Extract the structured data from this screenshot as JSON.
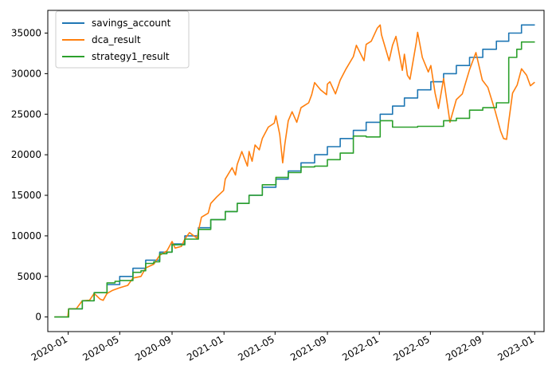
{
  "chart_data": {
    "type": "line",
    "title": "",
    "xlabel": "",
    "ylabel": "",
    "x_range": [
      "2019-11-14",
      "2023-01-23"
    ],
    "ylim": [
      -1800,
      37800
    ],
    "x_ticks": [
      {
        "date": "2020-01-01",
        "label": "2020-01"
      },
      {
        "date": "2020-05-01",
        "label": "2020-05"
      },
      {
        "date": "2020-09-01",
        "label": "2020-09"
      },
      {
        "date": "2021-01-01",
        "label": "2021-01"
      },
      {
        "date": "2021-05-01",
        "label": "2021-05"
      },
      {
        "date": "2021-09-01",
        "label": "2021-09"
      },
      {
        "date": "2022-01-01",
        "label": "2022-01"
      },
      {
        "date": "2022-05-01",
        "label": "2022-05"
      },
      {
        "date": "2022-09-01",
        "label": "2022-09"
      },
      {
        "date": "2023-01-01",
        "label": "2023-01"
      }
    ],
    "y_ticks": [
      0,
      5000,
      10000,
      15000,
      20000,
      25000,
      30000,
      35000
    ],
    "legend_position": "top-left",
    "grid": false,
    "series": [
      {
        "name": "savings_account",
        "color": "#1f77b4",
        "step": true,
        "points": [
          [
            "2019-12-01",
            0
          ],
          [
            "2020-01-02",
            1000
          ],
          [
            "2020-02-03",
            2000
          ],
          [
            "2020-03-02",
            3000
          ],
          [
            "2020-04-01",
            4000
          ],
          [
            "2020-05-01",
            5000
          ],
          [
            "2020-06-01",
            6000
          ],
          [
            "2020-07-01",
            7000
          ],
          [
            "2020-08-03",
            8000
          ],
          [
            "2020-09-01",
            9000
          ],
          [
            "2020-10-01",
            10000
          ],
          [
            "2020-11-02",
            11000
          ],
          [
            "2020-12-01",
            12000
          ],
          [
            "2021-01-04",
            13000
          ],
          [
            "2021-02-01",
            14000
          ],
          [
            "2021-03-01",
            15000
          ],
          [
            "2021-04-01",
            16000
          ],
          [
            "2021-05-03",
            17000
          ],
          [
            "2021-06-01",
            18000
          ],
          [
            "2021-07-01",
            19000
          ],
          [
            "2021-08-02",
            20000
          ],
          [
            "2021-09-01",
            21000
          ],
          [
            "2021-10-01",
            22000
          ],
          [
            "2021-11-01",
            23000
          ],
          [
            "2021-12-01",
            24000
          ],
          [
            "2022-01-03",
            25000
          ],
          [
            "2022-02-01",
            26000
          ],
          [
            "2022-03-01",
            27000
          ],
          [
            "2022-04-01",
            28000
          ],
          [
            "2022-05-02",
            29000
          ],
          [
            "2022-06-01",
            30000
          ],
          [
            "2022-07-01",
            31000
          ],
          [
            "2022-08-01",
            32000
          ],
          [
            "2022-09-01",
            33000
          ],
          [
            "2022-10-03",
            34000
          ],
          [
            "2022-11-01",
            35000
          ],
          [
            "2022-12-01",
            36000
          ],
          [
            "2022-12-31",
            36000
          ]
        ]
      },
      {
        "name": "dca_result",
        "color": "#ff7f0e",
        "step": false,
        "points": [
          [
            "2019-12-01",
            0
          ],
          [
            "2019-12-31",
            0
          ],
          [
            "2020-01-02",
            1000
          ],
          [
            "2020-01-20",
            1020
          ],
          [
            "2020-02-03",
            2000
          ],
          [
            "2020-02-20",
            2060
          ],
          [
            "2020-03-02",
            2900
          ],
          [
            "2020-03-16",
            2200
          ],
          [
            "2020-03-23",
            2050
          ],
          [
            "2020-04-01",
            2900
          ],
          [
            "2020-04-15",
            3300
          ],
          [
            "2020-05-01",
            3600
          ],
          [
            "2020-05-20",
            3900
          ],
          [
            "2020-06-01",
            4800
          ],
          [
            "2020-06-20",
            5000
          ],
          [
            "2020-07-01",
            6050
          ],
          [
            "2020-07-20",
            6500
          ],
          [
            "2020-08-03",
            7600
          ],
          [
            "2020-08-20",
            8150
          ],
          [
            "2020-09-01",
            9300
          ],
          [
            "2020-09-08",
            8500
          ],
          [
            "2020-09-23",
            8700
          ],
          [
            "2020-10-01",
            9600
          ],
          [
            "2020-10-12",
            10400
          ],
          [
            "2020-10-30",
            9700
          ],
          [
            "2020-11-02",
            10600
          ],
          [
            "2020-11-09",
            12300
          ],
          [
            "2020-11-25",
            12800
          ],
          [
            "2020-12-01",
            14000
          ],
          [
            "2020-12-15",
            14800
          ],
          [
            "2020-12-31",
            15600
          ],
          [
            "2021-01-04",
            17000
          ],
          [
            "2021-01-20",
            18400
          ],
          [
            "2021-01-28",
            17500
          ],
          [
            "2021-02-01",
            18800
          ],
          [
            "2021-02-12",
            20400
          ],
          [
            "2021-02-25",
            18600
          ],
          [
            "2021-03-01",
            20400
          ],
          [
            "2021-03-08",
            19200
          ],
          [
            "2021-03-15",
            21200
          ],
          [
            "2021-03-25",
            20600
          ],
          [
            "2021-04-01",
            22000
          ],
          [
            "2021-04-15",
            23400
          ],
          [
            "2021-04-29",
            23900
          ],
          [
            "2021-05-03",
            24800
          ],
          [
            "2021-05-12",
            22500
          ],
          [
            "2021-05-19",
            19000
          ],
          [
            "2021-05-24",
            21300
          ],
          [
            "2021-06-01",
            24200
          ],
          [
            "2021-06-10",
            25300
          ],
          [
            "2021-06-21",
            24000
          ],
          [
            "2021-07-01",
            25800
          ],
          [
            "2021-07-19",
            26400
          ],
          [
            "2021-07-26",
            27400
          ],
          [
            "2021-08-02",
            28900
          ],
          [
            "2021-08-16",
            28000
          ],
          [
            "2021-08-30",
            27400
          ],
          [
            "2021-09-01",
            28700
          ],
          [
            "2021-09-07",
            29000
          ],
          [
            "2021-09-20",
            27500
          ],
          [
            "2021-10-01",
            29200
          ],
          [
            "2021-10-15",
            30600
          ],
          [
            "2021-11-01",
            32100
          ],
          [
            "2021-11-08",
            33500
          ],
          [
            "2021-11-26",
            31600
          ],
          [
            "2021-12-01",
            33600
          ],
          [
            "2021-12-13",
            34000
          ],
          [
            "2021-12-27",
            35600
          ],
          [
            "2022-01-03",
            36000
          ],
          [
            "2022-01-06",
            34800
          ],
          [
            "2022-01-24",
            31600
          ],
          [
            "2022-02-01",
            33500
          ],
          [
            "2022-02-09",
            34600
          ],
          [
            "2022-02-24",
            30400
          ],
          [
            "2022-03-01",
            32400
          ],
          [
            "2022-03-08",
            29800
          ],
          [
            "2022-03-14",
            29300
          ],
          [
            "2022-03-29",
            33900
          ],
          [
            "2022-04-01",
            35100
          ],
          [
            "2022-04-12",
            32000
          ],
          [
            "2022-04-26",
            30200
          ],
          [
            "2022-05-02",
            31000
          ],
          [
            "2022-05-12",
            27600
          ],
          [
            "2022-05-20",
            25700
          ],
          [
            "2022-06-01",
            29400
          ],
          [
            "2022-06-16",
            24000
          ],
          [
            "2022-07-01",
            26800
          ],
          [
            "2022-07-15",
            27500
          ],
          [
            "2022-08-01",
            30500
          ],
          [
            "2022-08-16",
            32600
          ],
          [
            "2022-08-31",
            29200
          ],
          [
            "2022-09-13",
            28300
          ],
          [
            "2022-09-30",
            25400
          ],
          [
            "2022-10-13",
            22900
          ],
          [
            "2022-10-20",
            22000
          ],
          [
            "2022-10-27",
            21900
          ],
          [
            "2022-11-01",
            24100
          ],
          [
            "2022-11-10",
            27600
          ],
          [
            "2022-11-21",
            28600
          ],
          [
            "2022-12-01",
            30600
          ],
          [
            "2022-12-13",
            29800
          ],
          [
            "2022-12-22",
            28500
          ],
          [
            "2022-12-31",
            28900
          ]
        ]
      },
      {
        "name": "strategy1_result",
        "color": "#2ca02c",
        "step": true,
        "points": [
          [
            "2019-12-01",
            0
          ],
          [
            "2020-01-02",
            1000
          ],
          [
            "2020-02-03",
            2000
          ],
          [
            "2020-03-02",
            3000
          ],
          [
            "2020-04-01",
            4200
          ],
          [
            "2020-04-20",
            4400
          ],
          [
            "2020-05-01",
            4500
          ],
          [
            "2020-06-01",
            5500
          ],
          [
            "2020-06-20",
            5700
          ],
          [
            "2020-07-01",
            6600
          ],
          [
            "2020-07-20",
            6800
          ],
          [
            "2020-08-03",
            7800
          ],
          [
            "2020-08-20",
            8000
          ],
          [
            "2020-09-01",
            8900
          ],
          [
            "2020-10-01",
            9600
          ],
          [
            "2020-11-02",
            10800
          ],
          [
            "2020-12-01",
            12000
          ],
          [
            "2021-01-04",
            13000
          ],
          [
            "2021-02-01",
            14000
          ],
          [
            "2021-03-01",
            15000
          ],
          [
            "2021-04-01",
            16300
          ],
          [
            "2021-05-03",
            17200
          ],
          [
            "2021-06-01",
            17800
          ],
          [
            "2021-07-01",
            18500
          ],
          [
            "2021-08-02",
            18600
          ],
          [
            "2021-09-01",
            19400
          ],
          [
            "2021-10-01",
            20200
          ],
          [
            "2021-11-01",
            22300
          ],
          [
            "2021-12-01",
            22200
          ],
          [
            "2022-01-03",
            24200
          ],
          [
            "2022-02-01",
            23400
          ],
          [
            "2022-03-01",
            23400
          ],
          [
            "2022-04-01",
            23500
          ],
          [
            "2022-05-02",
            23500
          ],
          [
            "2022-06-01",
            24200
          ],
          [
            "2022-07-01",
            24500
          ],
          [
            "2022-08-01",
            25500
          ],
          [
            "2022-09-01",
            25800
          ],
          [
            "2022-10-03",
            26400
          ],
          [
            "2022-11-01",
            32000
          ],
          [
            "2022-11-20",
            33000
          ],
          [
            "2022-12-01",
            33900
          ],
          [
            "2022-12-31",
            33900
          ]
        ]
      }
    ]
  }
}
